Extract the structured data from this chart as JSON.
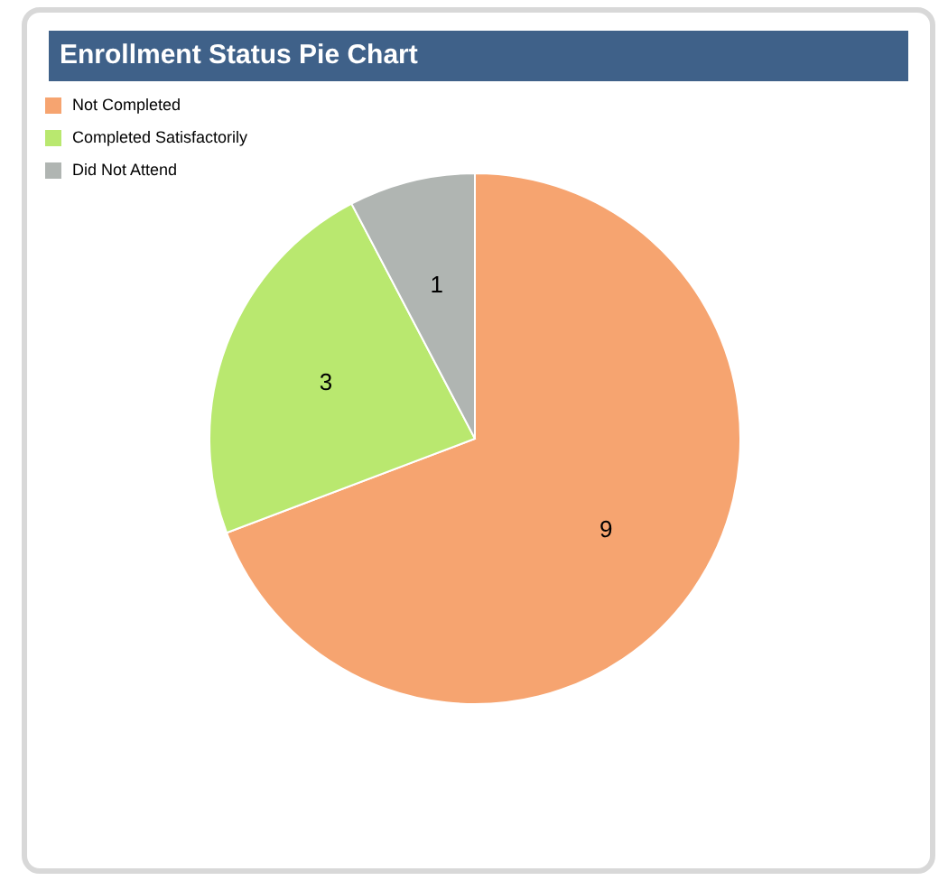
{
  "chart_data": {
    "type": "pie",
    "title": "Enrollment Status Pie Chart",
    "categories": [
      "Not Completed",
      "Completed Satisfactorily",
      "Did Not Attend"
    ],
    "values": [
      9,
      3,
      1
    ],
    "colors": [
      "#f6a470",
      "#b9e86f",
      "#b0b5b2"
    ],
    "data_labels": true,
    "legend": "top left"
  }
}
